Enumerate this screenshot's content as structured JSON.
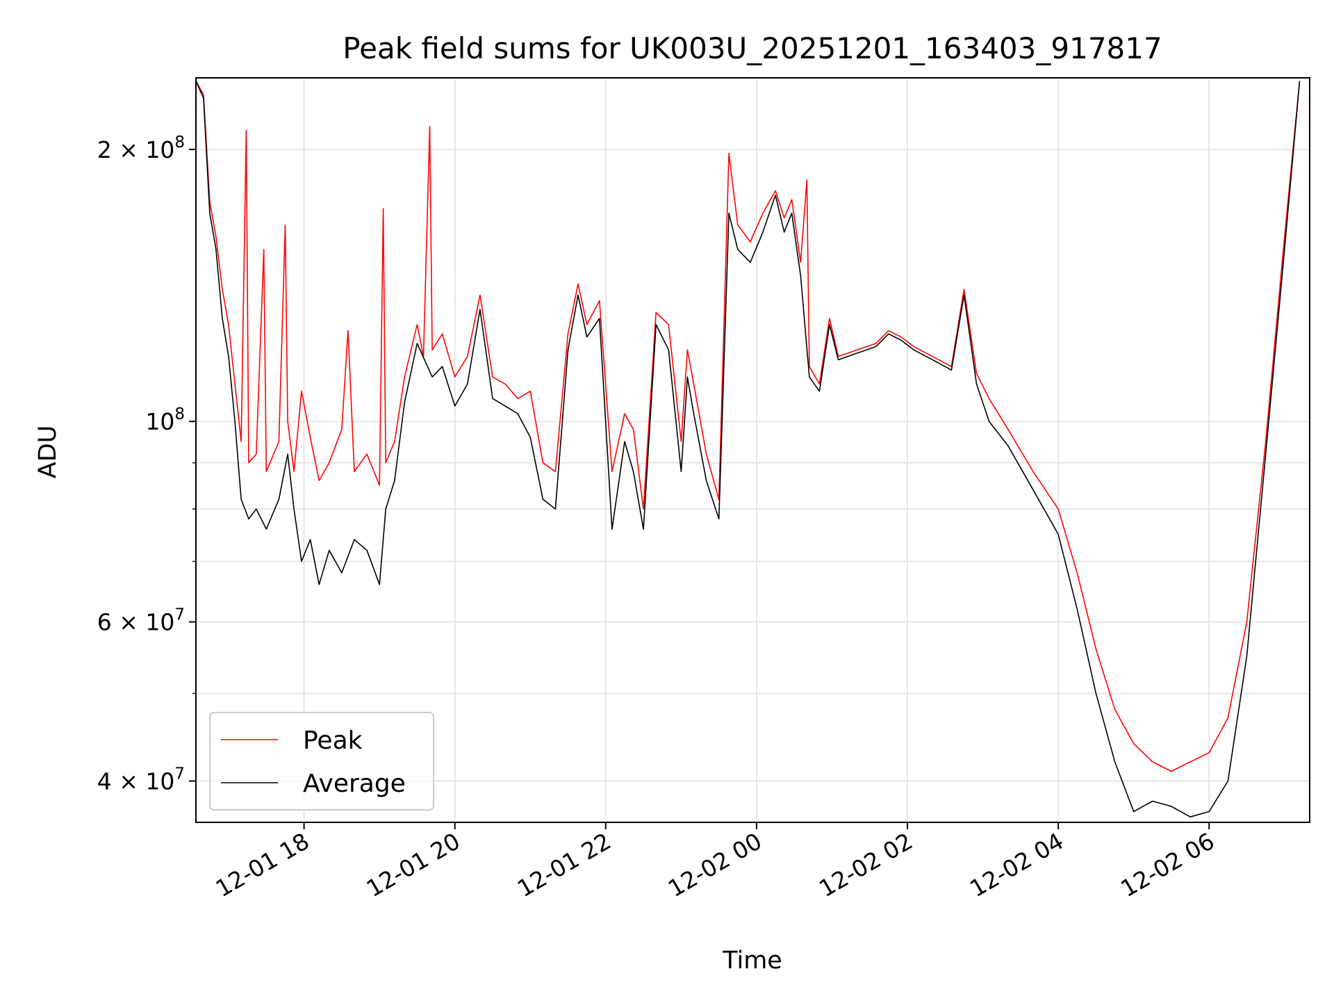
{
  "chart_data": {
    "type": "line",
    "title": "Peak field sums for UK003U_20251201_163403_917817",
    "xlabel": "Time",
    "ylabel": "ADU",
    "x_range": [
      "2025-12-01T16:34",
      "2025-12-02T07:20"
    ],
    "y_scale": "log",
    "ylim": [
      36000000,
      240000000
    ],
    "grid": true,
    "legend_position": "lower-left",
    "x_ticks": [
      {
        "t": "2025-12-01T18:00",
        "label": "12-01 18"
      },
      {
        "t": "2025-12-01T20:00",
        "label": "12-01 20"
      },
      {
        "t": "2025-12-01T22:00",
        "label": "12-01 22"
      },
      {
        "t": "2025-12-02T00:00",
        "label": "12-02 00"
      },
      {
        "t": "2025-12-02T02:00",
        "label": "12-02 02"
      },
      {
        "t": "2025-12-02T04:00",
        "label": "12-02 04"
      },
      {
        "t": "2025-12-02T06:00",
        "label": "12-02 06"
      }
    ],
    "y_ticks": [
      {
        "value": 40000000,
        "base": "4 × 10",
        "exp": "7"
      },
      {
        "value": 60000000,
        "base": "6 × 10",
        "exp": "7"
      },
      {
        "value": 100000000,
        "base": "10",
        "exp": "8"
      },
      {
        "value": 200000000,
        "base": "2 × 10",
        "exp": "8"
      }
    ],
    "y_minor_ticks": [
      50000000,
      70000000,
      80000000,
      90000000
    ],
    "series": [
      {
        "name": "Peak",
        "color": "#ff0000",
        "points": [
          [
            "2025-12-01T16:34",
            238000000
          ],
          [
            "2025-12-01T16:40",
            230000000
          ],
          [
            "2025-12-01T16:45",
            175000000
          ],
          [
            "2025-12-01T16:50",
            160000000
          ],
          [
            "2025-12-01T16:55",
            140000000
          ],
          [
            "2025-12-01T17:00",
            128000000
          ],
          [
            "2025-12-01T17:05",
            110000000
          ],
          [
            "2025-12-01T17:10",
            95000000
          ],
          [
            "2025-12-01T17:14",
            210000000
          ],
          [
            "2025-12-01T17:16",
            90000000
          ],
          [
            "2025-12-01T17:22",
            92000000
          ],
          [
            "2025-12-01T17:28",
            155000000
          ],
          [
            "2025-12-01T17:30",
            88000000
          ],
          [
            "2025-12-01T17:40",
            95000000
          ],
          [
            "2025-12-01T17:45",
            165000000
          ],
          [
            "2025-12-01T17:47",
            100000000
          ],
          [
            "2025-12-01T17:52",
            88000000
          ],
          [
            "2025-12-01T17:58",
            108000000
          ],
          [
            "2025-12-01T18:05",
            96000000
          ],
          [
            "2025-12-01T18:12",
            86000000
          ],
          [
            "2025-12-01T18:20",
            90000000
          ],
          [
            "2025-12-01T18:30",
            98000000
          ],
          [
            "2025-12-01T18:35",
            126000000
          ],
          [
            "2025-12-01T18:40",
            88000000
          ],
          [
            "2025-12-01T18:50",
            92000000
          ],
          [
            "2025-12-01T19:00",
            85000000
          ],
          [
            "2025-12-01T19:03",
            172000000
          ],
          [
            "2025-12-01T19:05",
            90000000
          ],
          [
            "2025-12-01T19:12",
            95000000
          ],
          [
            "2025-12-01T19:20",
            112000000
          ],
          [
            "2025-12-01T19:30",
            128000000
          ],
          [
            "2025-12-01T19:35",
            118000000
          ],
          [
            "2025-12-01T19:40",
            212000000
          ],
          [
            "2025-12-01T19:42",
            120000000
          ],
          [
            "2025-12-01T19:50",
            125000000
          ],
          [
            "2025-12-01T20:00",
            112000000
          ],
          [
            "2025-12-01T20:10",
            118000000
          ],
          [
            "2025-12-01T20:20",
            138000000
          ],
          [
            "2025-12-01T20:30",
            112000000
          ],
          [
            "2025-12-01T20:40",
            110000000
          ],
          [
            "2025-12-01T20:50",
            106000000
          ],
          [
            "2025-12-01T21:00",
            108000000
          ],
          [
            "2025-12-01T21:10",
            90000000
          ],
          [
            "2025-12-01T21:20",
            88000000
          ],
          [
            "2025-12-01T21:30",
            125000000
          ],
          [
            "2025-12-01T21:38",
            142000000
          ],
          [
            "2025-12-01T21:45",
            128000000
          ],
          [
            "2025-12-01T21:55",
            136000000
          ],
          [
            "2025-12-01T22:05",
            88000000
          ],
          [
            "2025-12-01T22:15",
            102000000
          ],
          [
            "2025-12-01T22:22",
            98000000
          ],
          [
            "2025-12-01T22:30",
            80000000
          ],
          [
            "2025-12-01T22:40",
            132000000
          ],
          [
            "2025-12-01T22:50",
            128000000
          ],
          [
            "2025-12-01T23:00",
            95000000
          ],
          [
            "2025-12-01T23:05",
            120000000
          ],
          [
            "2025-12-01T23:10",
            110000000
          ],
          [
            "2025-12-01T23:20",
            92000000
          ],
          [
            "2025-12-01T23:30",
            82000000
          ],
          [
            "2025-12-01T23:38",
            198000000
          ],
          [
            "2025-12-01T23:45",
            165000000
          ],
          [
            "2025-12-01T23:55",
            158000000
          ],
          [
            "2025-12-02T00:05",
            170000000
          ],
          [
            "2025-12-02T00:15",
            180000000
          ],
          [
            "2025-12-02T00:22",
            168000000
          ],
          [
            "2025-12-02T00:28",
            176000000
          ],
          [
            "2025-12-02T00:35",
            150000000
          ],
          [
            "2025-12-02T00:40",
            185000000
          ],
          [
            "2025-12-02T00:42",
            115000000
          ],
          [
            "2025-12-02T00:50",
            110000000
          ],
          [
            "2025-12-02T00:58",
            130000000
          ],
          [
            "2025-12-02T01:05",
            118000000
          ],
          [
            "2025-12-02T01:20",
            120000000
          ],
          [
            "2025-12-02T01:35",
            122000000
          ],
          [
            "2025-12-02T01:45",
            126000000
          ],
          [
            "2025-12-02T01:55",
            124000000
          ],
          [
            "2025-12-02T02:05",
            121000000
          ],
          [
            "2025-12-02T02:20",
            118000000
          ],
          [
            "2025-12-02T02:35",
            115000000
          ],
          [
            "2025-12-02T02:45",
            140000000
          ],
          [
            "2025-12-02T02:55",
            113000000
          ],
          [
            "2025-12-02T03:05",
            106000000
          ],
          [
            "2025-12-02T03:20",
            98000000
          ],
          [
            "2025-12-02T03:40",
            88000000
          ],
          [
            "2025-12-02T04:00",
            80000000
          ],
          [
            "2025-12-02T04:15",
            68000000
          ],
          [
            "2025-12-02T04:30",
            56000000
          ],
          [
            "2025-12-02T04:45",
            48000000
          ],
          [
            "2025-12-02T05:00",
            44000000
          ],
          [
            "2025-12-02T05:15",
            42000000
          ],
          [
            "2025-12-02T05:30",
            41000000
          ],
          [
            "2025-12-02T05:45",
            42000000
          ],
          [
            "2025-12-02T06:00",
            43000000
          ],
          [
            "2025-12-02T06:15",
            47000000
          ],
          [
            "2025-12-02T06:30",
            60000000
          ],
          [
            "2025-12-02T06:45",
            95000000
          ],
          [
            "2025-12-02T07:00",
            160000000
          ],
          [
            "2025-12-02T07:12",
            238000000
          ]
        ]
      },
      {
        "name": "Average",
        "color": "#000000",
        "points": [
          [
            "2025-12-01T16:34",
            238000000
          ],
          [
            "2025-12-01T16:40",
            228000000
          ],
          [
            "2025-12-01T16:45",
            170000000
          ],
          [
            "2025-12-01T16:50",
            155000000
          ],
          [
            "2025-12-01T16:55",
            130000000
          ],
          [
            "2025-12-01T17:00",
            118000000
          ],
          [
            "2025-12-01T17:05",
            100000000
          ],
          [
            "2025-12-01T17:10",
            82000000
          ],
          [
            "2025-12-01T17:16",
            78000000
          ],
          [
            "2025-12-01T17:22",
            80000000
          ],
          [
            "2025-12-01T17:30",
            76000000
          ],
          [
            "2025-12-01T17:40",
            82000000
          ],
          [
            "2025-12-01T17:47",
            92000000
          ],
          [
            "2025-12-01T17:52",
            80000000
          ],
          [
            "2025-12-01T17:58",
            70000000
          ],
          [
            "2025-12-01T18:05",
            74000000
          ],
          [
            "2025-12-01T18:12",
            66000000
          ],
          [
            "2025-12-01T18:20",
            72000000
          ],
          [
            "2025-12-01T18:30",
            68000000
          ],
          [
            "2025-12-01T18:40",
            74000000
          ],
          [
            "2025-12-01T18:50",
            72000000
          ],
          [
            "2025-12-01T19:00",
            66000000
          ],
          [
            "2025-12-01T19:05",
            80000000
          ],
          [
            "2025-12-01T19:12",
            86000000
          ],
          [
            "2025-12-01T19:20",
            105000000
          ],
          [
            "2025-12-01T19:30",
            122000000
          ],
          [
            "2025-12-01T19:42",
            112000000
          ],
          [
            "2025-12-01T19:50",
            115000000
          ],
          [
            "2025-12-01T20:00",
            104000000
          ],
          [
            "2025-12-01T20:10",
            110000000
          ],
          [
            "2025-12-01T20:20",
            133000000
          ],
          [
            "2025-12-01T20:30",
            106000000
          ],
          [
            "2025-12-01T20:40",
            104000000
          ],
          [
            "2025-12-01T20:50",
            102000000
          ],
          [
            "2025-12-01T21:00",
            96000000
          ],
          [
            "2025-12-01T21:10",
            82000000
          ],
          [
            "2025-12-01T21:20",
            80000000
          ],
          [
            "2025-12-01T21:30",
            120000000
          ],
          [
            "2025-12-01T21:38",
            138000000
          ],
          [
            "2025-12-01T21:45",
            124000000
          ],
          [
            "2025-12-01T21:55",
            130000000
          ],
          [
            "2025-12-01T22:05",
            76000000
          ],
          [
            "2025-12-01T22:15",
            95000000
          ],
          [
            "2025-12-01T22:22",
            88000000
          ],
          [
            "2025-12-01T22:30",
            76000000
          ],
          [
            "2025-12-01T22:40",
            128000000
          ],
          [
            "2025-12-01T22:50",
            120000000
          ],
          [
            "2025-12-01T23:00",
            88000000
          ],
          [
            "2025-12-01T23:05",
            112000000
          ],
          [
            "2025-12-01T23:10",
            102000000
          ],
          [
            "2025-12-01T23:20",
            86000000
          ],
          [
            "2025-12-01T23:30",
            78000000
          ],
          [
            "2025-12-01T23:38",
            170000000
          ],
          [
            "2025-12-01T23:45",
            155000000
          ],
          [
            "2025-12-01T23:55",
            150000000
          ],
          [
            "2025-12-02T00:05",
            162000000
          ],
          [
            "2025-12-02T00:15",
            178000000
          ],
          [
            "2025-12-02T00:22",
            162000000
          ],
          [
            "2025-12-02T00:28",
            170000000
          ],
          [
            "2025-12-02T00:35",
            145000000
          ],
          [
            "2025-12-02T00:42",
            112000000
          ],
          [
            "2025-12-02T00:50",
            108000000
          ],
          [
            "2025-12-02T00:58",
            128000000
          ],
          [
            "2025-12-02T01:05",
            117000000
          ],
          [
            "2025-12-02T01:20",
            119000000
          ],
          [
            "2025-12-02T01:35",
            121000000
          ],
          [
            "2025-12-02T01:45",
            125000000
          ],
          [
            "2025-12-02T01:55",
            123000000
          ],
          [
            "2025-12-02T02:05",
            120000000
          ],
          [
            "2025-12-02T02:20",
            117000000
          ],
          [
            "2025-12-02T02:35",
            114000000
          ],
          [
            "2025-12-02T02:45",
            138000000
          ],
          [
            "2025-12-02T02:55",
            110000000
          ],
          [
            "2025-12-02T03:05",
            100000000
          ],
          [
            "2025-12-02T03:20",
            94000000
          ],
          [
            "2025-12-02T03:40",
            84000000
          ],
          [
            "2025-12-02T04:00",
            75000000
          ],
          [
            "2025-12-02T04:15",
            62000000
          ],
          [
            "2025-12-02T04:30",
            50000000
          ],
          [
            "2025-12-02T04:45",
            42000000
          ],
          [
            "2025-12-02T05:00",
            37000000
          ],
          [
            "2025-12-02T05:15",
            38000000
          ],
          [
            "2025-12-02T05:30",
            37500000
          ],
          [
            "2025-12-02T05:45",
            36500000
          ],
          [
            "2025-12-02T06:00",
            37000000
          ],
          [
            "2025-12-02T06:15",
            40000000
          ],
          [
            "2025-12-02T06:30",
            55000000
          ],
          [
            "2025-12-02T06:45",
            92000000
          ],
          [
            "2025-12-02T07:00",
            155000000
          ],
          [
            "2025-12-02T07:12",
            238000000
          ]
        ]
      }
    ]
  }
}
